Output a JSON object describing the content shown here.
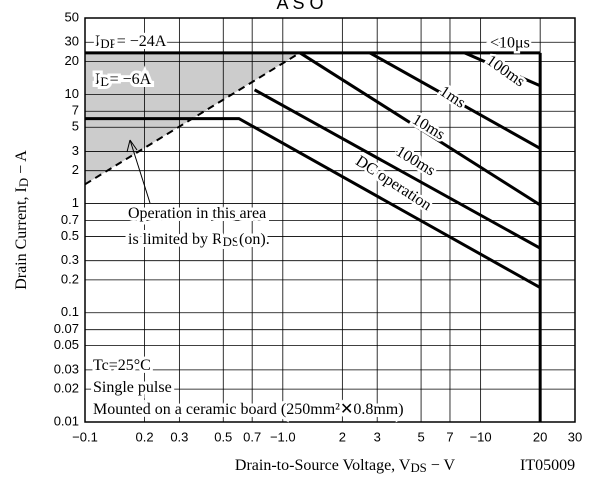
{
  "chart_data": {
    "type": "line",
    "title": "A S O",
    "x_label": [
      "Drain-to-Source Voltage, V",
      "DS",
      " − V"
    ],
    "y_label": [
      "Drain Current, I",
      "D",
      " − A"
    ],
    "log_x": true,
    "log_y": true,
    "grid": true,
    "xlim": [
      0.1,
      30
    ],
    "ylim": [
      0.01,
      50
    ],
    "xticks": [
      {
        "value": 0.1,
        "label": "−0.1"
      },
      0.2,
      0.3,
      0.5,
      0.7,
      {
        "value": 1,
        "label": "−1.0"
      },
      2,
      3,
      5,
      7,
      {
        "value": 10,
        "label": "−10"
      },
      20,
      30
    ],
    "yticks": [
      0.01,
      0.02,
      0.03,
      0.05,
      0.07,
      0.1,
      0.2,
      0.3,
      0.5,
      0.7,
      1,
      2,
      3,
      5,
      7,
      10,
      20,
      30,
      50
    ],
    "series": [
      {
        "color": "#000000",
        "x": [
          0.1,
          20
        ],
        "values": [
          24,
          24
        ]
      },
      {
        "name": "<10μs",
        "color": "#000000",
        "x": [
          20,
          20
        ],
        "values": [
          24,
          0.01
        ]
      },
      {
        "name": "100ms",
        "color": "#000000",
        "x": [
          8.3,
          20
        ],
        "values": [
          24,
          12
        ]
      },
      {
        "name": "1ms",
        "color": "#000000",
        "x": [
          2.75,
          20
        ],
        "values": [
          24,
          3.2
        ]
      },
      {
        "name": "10ms",
        "color": "#000000",
        "x": [
          1.22,
          20
        ],
        "values": [
          24,
          0.97
        ]
      },
      {
        "name": "100ms",
        "color": "#000000",
        "x": [
          0.72,
          20
        ],
        "values": [
          11,
          0.39
        ]
      },
      {
        "name": "DC operation",
        "color": "#000000",
        "x": [
          0.1,
          0.6,
          20
        ],
        "values": [
          6,
          6,
          0.17
        ]
      },
      {
        "color": "#000000",
        "dashed": true,
        "shade": "#cccccc",
        "x": [
          0.1,
          1.22
        ],
        "values": [
          1.5,
          24
        ]
      }
    ],
    "annotations": [
      [
        "I",
        "DP",
        "= −24A"
      ],
      [
        "I",
        "D",
        "= −6A"
      ],
      [
        "Operation in this area"
      ],
      [
        "is limited by R",
        "DS",
        "(on)."
      ],
      [
        "Tc=25°C"
      ],
      [
        "Single pulse"
      ],
      [
        "Mounted on a ceramic board (250mm²✕0.8mm)"
      ],
      [
        "IT05009"
      ]
    ]
  }
}
